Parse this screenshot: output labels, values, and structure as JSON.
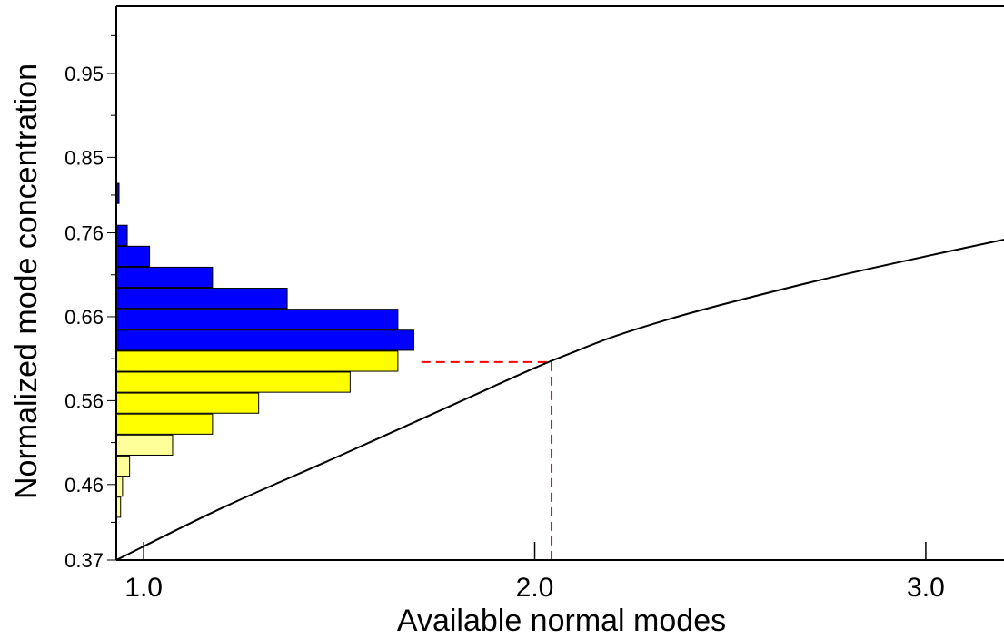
{
  "chart_data": {
    "type": "bar",
    "xlabel": "Available normal modes",
    "ylabel": "Normalized mode concentration",
    "xlim": [
      0.93,
      3.2
    ],
    "ylim": [
      0.37,
      1.03
    ],
    "x_ticks": [
      {
        "value": 1.0,
        "label": "1.0"
      },
      {
        "value": 2.0,
        "label": "2.0"
      },
      {
        "value": 3.0,
        "label": "3.0"
      }
    ],
    "y_ticks": [
      {
        "value": 0.37,
        "label": "0.37"
      },
      {
        "value": 0.46,
        "label": "0.46"
      },
      {
        "value": 0.56,
        "label": "0.56"
      },
      {
        "value": 0.66,
        "label": "0.66"
      },
      {
        "value": 0.76,
        "label": "0.76"
      },
      {
        "value": 0.85,
        "label": "0.85"
      },
      {
        "value": 0.95,
        "label": "0.95"
      }
    ],
    "y_minor_ticks": [
      0.415,
      0.51,
      0.61,
      0.71,
      0.805,
      0.9,
      0.995
    ],
    "histogram": {
      "orientation": "horizontal",
      "baseline_x": 0.93,
      "bars": [
        {
          "y0": 0.421,
          "y1": 0.445,
          "x": 0.941,
          "color": "#ffff99"
        },
        {
          "y0": 0.446,
          "y1": 0.469,
          "x": 0.946,
          "color": "#ffff99"
        },
        {
          "y0": 0.47,
          "y1": 0.494,
          "x": 0.964,
          "color": "#ffff99"
        },
        {
          "y0": 0.495,
          "y1": 0.519,
          "x": 1.074,
          "color": "#ffff99"
        },
        {
          "y0": 0.52,
          "y1": 0.544,
          "x": 1.176,
          "color": "#ffff00"
        },
        {
          "y0": 0.545,
          "y1": 0.569,
          "x": 1.294,
          "color": "#ffff00"
        },
        {
          "y0": 0.57,
          "y1": 0.594,
          "x": 1.528,
          "color": "#ffff00"
        },
        {
          "y0": 0.595,
          "y1": 0.619,
          "x": 1.65,
          "color": "#ffff00"
        },
        {
          "y0": 0.62,
          "y1": 0.644,
          "x": 1.691,
          "color": "#0000ff"
        },
        {
          "y0": 0.645,
          "y1": 0.669,
          "x": 1.65,
          "color": "#0000ff"
        },
        {
          "y0": 0.67,
          "y1": 0.694,
          "x": 1.367,
          "color": "#0000ff"
        },
        {
          "y0": 0.695,
          "y1": 0.719,
          "x": 1.176,
          "color": "#0000ff"
        },
        {
          "y0": 0.72,
          "y1": 0.744,
          "x": 1.015,
          "color": "#0000ff"
        },
        {
          "y0": 0.745,
          "y1": 0.769,
          "x": 0.958,
          "color": "#0000ff"
        },
        {
          "y0": 0.795,
          "y1": 0.819,
          "x": 0.937,
          "color": "#0000ff"
        }
      ]
    },
    "curve": {
      "color": "#000000",
      "points": [
        [
          0.93,
          0.37
        ],
        [
          1.2,
          0.432
        ],
        [
          1.5,
          0.494
        ],
        [
          1.8,
          0.557
        ],
        [
          2.0,
          0.599
        ],
        [
          2.1,
          0.618
        ],
        [
          2.2,
          0.636
        ],
        [
          2.35,
          0.658
        ],
        [
          2.5,
          0.677
        ],
        [
          2.75,
          0.706
        ],
        [
          3.0,
          0.732
        ],
        [
          3.2,
          0.752
        ]
      ]
    },
    "reference_lines": {
      "color": "#ff0000",
      "style": "dashed",
      "x": 2.043,
      "y": 0.606,
      "x_start": 1.71
    },
    "grid": false,
    "legend": "none"
  }
}
